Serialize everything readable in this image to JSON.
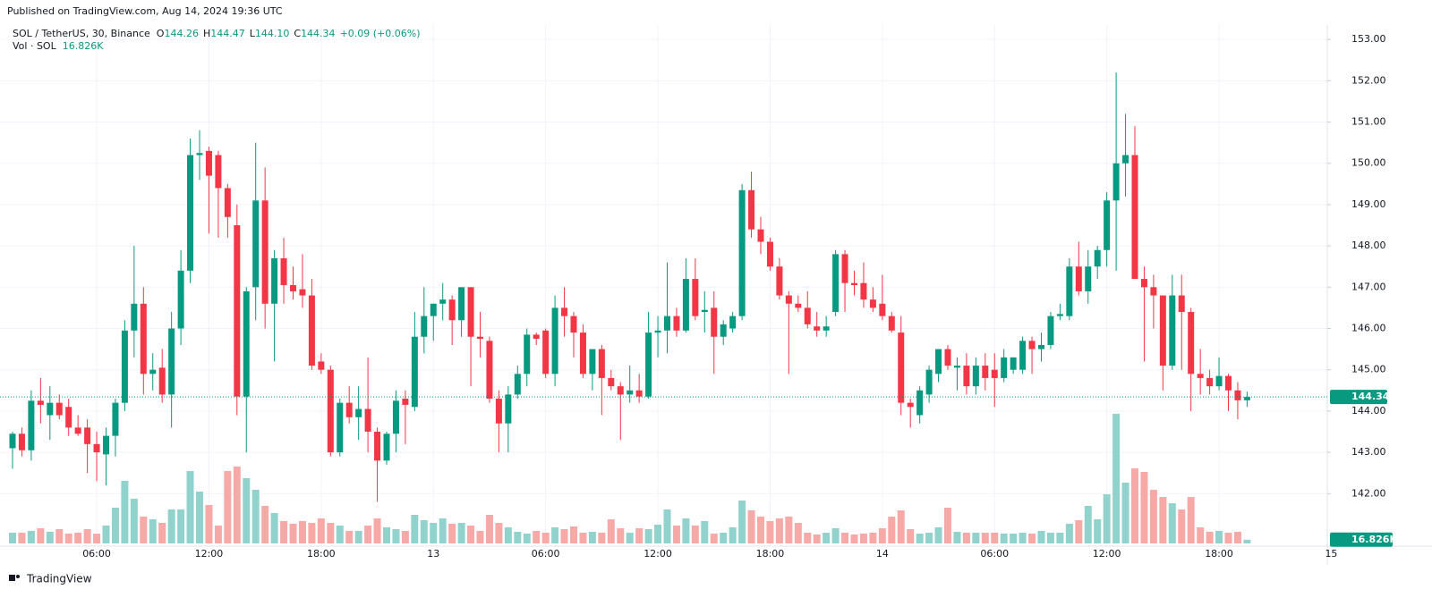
{
  "header": {
    "published": "Published on TradingView.com, Aug 14, 2024 19:36 UTC",
    "brand": "TradingView"
  },
  "legend": {
    "symbol": "SOL / TetherUS, 30, Binance",
    "ohlc": [
      {
        "key": "O",
        "value": "144.26"
      },
      {
        "key": "H",
        "value": "144.47"
      },
      {
        "key": "L",
        "value": "144.10"
      },
      {
        "key": "C",
        "value": "144.34"
      }
    ],
    "change": "+0.09 (+0.06%)",
    "volume_name": "Vol · SOL",
    "volume": "16.826K"
  },
  "chart_data": {
    "type": "candlestick",
    "up_color": "#089981",
    "down_color": "#f23645",
    "volume_up_color": "#92d2cc",
    "volume_down_color": "#f7a9a7",
    "grid": true,
    "ylim": [
      140.75,
      153.35
    ],
    "yticks": [
      {
        "value": 142,
        "label": "142.00"
      },
      {
        "value": 143,
        "label": "143.00"
      },
      {
        "value": 144,
        "label": "144.00"
      },
      {
        "value": 145,
        "label": "145.00"
      },
      {
        "value": 146,
        "label": "146.00"
      },
      {
        "value": 147,
        "label": "147.00"
      },
      {
        "value": 148,
        "label": "148.00"
      },
      {
        "value": 149,
        "label": "149.00"
      },
      {
        "value": 150,
        "label": "150.00"
      },
      {
        "value": 151,
        "label": "151.00"
      },
      {
        "value": 152,
        "label": "152.00"
      },
      {
        "value": 153,
        "label": "153.00"
      }
    ],
    "categories": [
      null,
      null,
      null,
      null,
      null,
      null,
      null,
      null,
      null,
      "06:00",
      null,
      null,
      null,
      null,
      null,
      null,
      null,
      null,
      null,
      null,
      null,
      "12:00",
      null,
      null,
      null,
      null,
      null,
      null,
      null,
      null,
      null,
      null,
      null,
      "18:00",
      null,
      null,
      null,
      null,
      null,
      null,
      null,
      null,
      null,
      null,
      null,
      "13",
      null,
      null,
      null,
      null,
      null,
      null,
      null,
      null,
      null,
      null,
      null,
      "06:00",
      null,
      null,
      null,
      null,
      null,
      null,
      null,
      null,
      null,
      null,
      null,
      "12:00",
      null,
      null,
      null,
      null,
      null,
      null,
      null,
      null,
      null,
      null,
      null,
      "18:00",
      null,
      null,
      null,
      null,
      null,
      null,
      null,
      null,
      null,
      null,
      null,
      "14",
      null,
      null,
      null,
      null,
      null,
      null,
      null,
      null,
      null,
      null,
      null,
      "06:00",
      null,
      null,
      null,
      null,
      null,
      null,
      null,
      null,
      null,
      null,
      null,
      "12:00",
      null,
      null,
      null,
      null,
      null,
      null,
      null,
      null,
      null,
      null,
      null,
      "18:00",
      null,
      null,
      null,
      null,
      null,
      null,
      null,
      null,
      null,
      null,
      null,
      "15"
    ],
    "open": [
      143.1,
      143.45,
      143.05,
      144.25,
      143.9,
      144.2,
      144.1,
      143.6,
      143.6,
      143.2,
      142.95,
      143.4,
      144.2,
      145.95,
      146.6,
      144.9,
      145.05,
      144.4,
      146.0,
      147.4,
      150.2,
      150.3,
      150.2,
      149.4,
      148.5,
      144.35,
      147.0,
      149.1,
      146.6,
      147.7,
      147.05,
      146.95,
      146.8,
      145.2,
      145.0,
      143.0,
      144.2,
      143.85,
      144.05,
      143.5,
      142.8,
      143.45,
      144.3,
      144.1,
      145.8,
      146.3,
      146.6,
      146.7,
      146.2,
      147.0,
      145.8,
      145.7,
      144.3,
      143.7,
      144.4,
      144.9,
      145.85,
      145.95,
      144.9,
      146.5,
      146.3,
      145.9,
      144.9,
      145.5,
      144.8,
      144.6,
      144.4,
      144.5,
      144.35,
      145.9,
      145.95,
      146.3,
      145.95,
      147.2,
      146.4,
      146.5,
      145.8,
      146.0,
      146.3,
      149.35,
      148.4,
      148.1,
      147.5,
      146.8,
      146.6,
      146.5,
      146.05,
      145.95,
      146.4,
      147.8,
      147.1,
      147.1,
      146.7,
      146.6,
      146.3,
      145.9,
      144.2,
      143.9,
      144.4,
      144.9,
      145.5,
      145.05,
      145.1,
      144.6,
      145.1,
      145.0,
      144.8,
      145.0,
      145.0,
      145.7,
      145.5,
      145.6,
      146.3,
      146.3,
      147.5,
      146.9,
      147.5,
      147.9,
      149.1,
      150.0,
      150.2,
      147.2,
      147.0,
      146.8,
      145.1,
      146.8,
      146.4,
      144.9,
      144.8,
      144.6,
      144.85,
      144.5,
      144.26,
      null,
      null,
      null,
      null,
      null,
      null,
      null,
      null,
      null
    ],
    "high": [
      143.5,
      143.6,
      144.5,
      144.8,
      144.6,
      144.4,
      144.3,
      143.9,
      143.8,
      143.5,
      143.6,
      144.3,
      146.2,
      148.0,
      147.0,
      145.4,
      145.5,
      146.4,
      147.9,
      150.6,
      150.8,
      150.4,
      150.3,
      149.5,
      149.0,
      147.0,
      150.5,
      149.9,
      147.9,
      148.2,
      147.5,
      147.8,
      147.2,
      145.4,
      145.1,
      144.3,
      144.6,
      144.6,
      145.3,
      143.6,
      143.5,
      144.5,
      144.5,
      146.4,
      147.0,
      146.6,
      147.1,
      146.8,
      147.0,
      147.0,
      146.4,
      145.8,
      144.5,
      144.6,
      145.1,
      146.0,
      145.9,
      146.0,
      146.8,
      147.0,
      146.4,
      146.1,
      145.5,
      145.6,
      145.0,
      144.7,
      145.1,
      144.9,
      146.4,
      146.3,
      147.6,
      146.5,
      147.7,
      147.7,
      146.9,
      146.9,
      146.2,
      146.4,
      149.5,
      149.8,
      148.7,
      148.2,
      147.7,
      146.9,
      146.8,
      146.9,
      146.4,
      146.3,
      147.9,
      147.9,
      147.4,
      147.6,
      147.0,
      147.3,
      146.4,
      146.3,
      144.3,
      144.6,
      145.1,
      145.5,
      145.6,
      145.3,
      145.4,
      145.3,
      145.4,
      145.4,
      145.5,
      145.3,
      145.8,
      145.8,
      145.9,
      146.4,
      146.6,
      147.7,
      148.1,
      147.9,
      148.0,
      149.3,
      152.2,
      151.2,
      150.9,
      147.5,
      147.3,
      146.8,
      147.3,
      147.3,
      146.5,
      145.5,
      145.0,
      145.3,
      144.9,
      144.7,
      144.47,
      null,
      null,
      null,
      null,
      null,
      null,
      null,
      null,
      null
    ],
    "low": [
      142.6,
      142.9,
      142.8,
      143.7,
      143.3,
      143.8,
      143.4,
      143.4,
      142.5,
      142.3,
      142.2,
      142.9,
      144.0,
      145.3,
      144.4,
      144.5,
      144.2,
      143.6,
      145.6,
      147.1,
      149.6,
      148.3,
      148.2,
      148.2,
      143.9,
      143.0,
      146.2,
      146.0,
      145.2,
      146.6,
      146.7,
      146.5,
      145.0,
      144.9,
      142.9,
      142.9,
      143.7,
      143.3,
      143.0,
      141.8,
      142.7,
      143.0,
      143.2,
      144.0,
      145.4,
      145.7,
      146.2,
      145.6,
      145.8,
      144.6,
      145.3,
      144.2,
      143.0,
      143.0,
      144.3,
      144.6,
      145.6,
      144.8,
      144.6,
      145.8,
      145.3,
      144.8,
      144.5,
      143.9,
      144.5,
      143.3,
      144.2,
      144.2,
      144.3,
      145.3,
      145.4,
      145.8,
      145.9,
      146.2,
      145.9,
      144.9,
      145.6,
      145.9,
      146.2,
      148.2,
      147.8,
      147.4,
      146.7,
      144.9,
      146.4,
      146.0,
      145.8,
      145.8,
      146.3,
      146.4,
      146.8,
      146.5,
      146.4,
      146.2,
      145.9,
      143.9,
      143.6,
      143.7,
      144.2,
      144.7,
      145.0,
      144.5,
      144.4,
      144.4,
      144.5,
      144.1,
      144.7,
      144.9,
      144.9,
      144.9,
      145.2,
      145.5,
      146.2,
      146.2,
      146.8,
      146.6,
      147.2,
      147.5,
      147.4,
      149.2,
      147.2,
      145.2,
      146.0,
      144.5,
      145.0,
      145.0,
      144.0,
      144.4,
      144.4,
      144.5,
      144.0,
      143.8,
      144.1,
      null,
      null,
      null,
      null,
      null,
      null,
      null,
      null,
      null
    ],
    "close": [
      143.45,
      143.05,
      144.25,
      144.15,
      144.2,
      143.9,
      143.6,
      143.45,
      143.2,
      143.0,
      143.4,
      144.2,
      145.95,
      146.6,
      144.9,
      145.0,
      144.4,
      146.0,
      147.4,
      150.2,
      150.25,
      149.7,
      149.4,
      148.7,
      144.35,
      146.9,
      149.1,
      146.6,
      147.7,
      147.05,
      146.9,
      146.8,
      145.1,
      145.0,
      143.0,
      144.2,
      143.85,
      144.05,
      143.5,
      142.8,
      143.45,
      144.25,
      144.15,
      145.8,
      146.3,
      146.6,
      146.7,
      146.2,
      147.0,
      145.8,
      145.75,
      144.3,
      143.7,
      144.4,
      144.9,
      145.85,
      145.75,
      144.9,
      146.5,
      146.3,
      145.9,
      144.9,
      145.5,
      144.8,
      144.6,
      144.4,
      144.5,
      144.35,
      145.9,
      145.95,
      146.3,
      145.95,
      147.2,
      146.3,
      146.45,
      145.8,
      146.1,
      146.3,
      149.35,
      148.4,
      148.1,
      147.5,
      146.8,
      146.6,
      146.5,
      146.1,
      145.95,
      146.05,
      147.8,
      147.1,
      147.05,
      146.7,
      146.5,
      146.3,
      145.95,
      144.2,
      144.1,
      144.5,
      145.0,
      145.5,
      145.1,
      145.1,
      144.6,
      145.1,
      144.8,
      144.8,
      145.3,
      145.3,
      145.7,
      145.5,
      145.6,
      146.3,
      146.35,
      147.5,
      146.9,
      147.5,
      147.9,
      149.1,
      150.0,
      150.2,
      147.2,
      147.0,
      146.8,
      145.1,
      146.8,
      146.4,
      144.9,
      144.8,
      144.6,
      144.85,
      144.5,
      144.26,
      144.34,
      null,
      null,
      null,
      null,
      null,
      null,
      null,
      null,
      null
    ],
    "volume": [
      48,
      48,
      56,
      68,
      52,
      64,
      44,
      48,
      64,
      44,
      80,
      160,
      280,
      200,
      120,
      108,
      92,
      152,
      152,
      324,
      232,
      172,
      80,
      324,
      344,
      292,
      240,
      168,
      136,
      100,
      88,
      100,
      92,
      112,
      92,
      80,
      56,
      56,
      80,
      112,
      72,
      64,
      56,
      128,
      104,
      92,
      112,
      88,
      92,
      80,
      56,
      128,
      92,
      72,
      52,
      44,
      56,
      48,
      72,
      64,
      76,
      48,
      52,
      48,
      108,
      68,
      48,
      68,
      64,
      84,
      152,
      80,
      112,
      80,
      100,
      44,
      48,
      72,
      192,
      148,
      120,
      100,
      112,
      120,
      92,
      48,
      40,
      48,
      68,
      48,
      40,
      44,
      48,
      68,
      120,
      148,
      64,
      44,
      48,
      72,
      160,
      52,
      48,
      48,
      48,
      48,
      44,
      44,
      48,
      44,
      56,
      48,
      48,
      88,
      104,
      168,
      108,
      220,
      580,
      272,
      336,
      320,
      240,
      208,
      180,
      152,
      208,
      72,
      52,
      56,
      48,
      52,
      16.826,
      null,
      null,
      null,
      null,
      null,
      null,
      null,
      null,
      null
    ]
  }
}
